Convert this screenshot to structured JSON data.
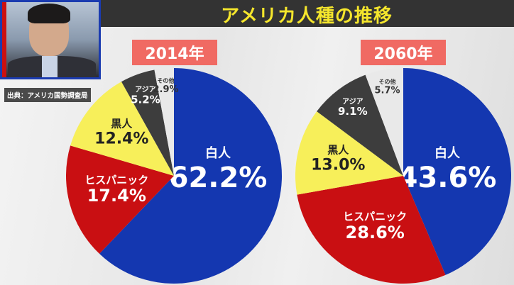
{
  "header": {
    "title": "アメリカ人種の推移"
  },
  "source": "出典：アメリカ国勢調査局",
  "chart_data": [
    {
      "type": "pie",
      "title": "2014年",
      "slices": [
        {
          "label": "白人",
          "value": 62.2,
          "text": "62.2%",
          "color": "#1437b0"
        },
        {
          "label": "ヒスパニック",
          "value": 17.4,
          "text": "17.4%",
          "color": "#c90f12"
        },
        {
          "label": "黒人",
          "value": 12.4,
          "text": "12.4%",
          "color": "#f7ef5a"
        },
        {
          "label": "アジア",
          "value": 5.2,
          "text": "5.2%",
          "color": "#3d3d3d"
        },
        {
          "label": "その他",
          "value": 2.9,
          "text": "2.9%",
          "color": "#e9e9e9"
        }
      ]
    },
    {
      "type": "pie",
      "title": "2060年",
      "slices": [
        {
          "label": "白人",
          "value": 43.6,
          "text": "43.6%",
          "color": "#1437b0"
        },
        {
          "label": "ヒスパニック",
          "value": 28.6,
          "text": "28.6%",
          "color": "#c90f12"
        },
        {
          "label": "黒人",
          "value": 13.0,
          "text": "13.0%",
          "color": "#f7ef5a"
        },
        {
          "label": "アジア",
          "value": 9.1,
          "text": "9.1%",
          "color": "#3d3d3d"
        },
        {
          "label": "その他",
          "value": 5.7,
          "text": "5.7%",
          "color": "#e9e9e9"
        }
      ]
    }
  ]
}
